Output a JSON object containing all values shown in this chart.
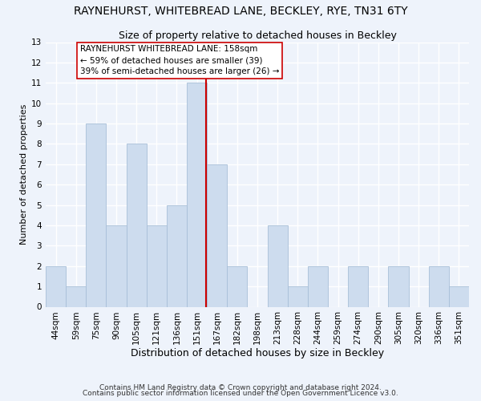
{
  "title": "RAYNEHURST, WHITEBREAD LANE, BECKLEY, RYE, TN31 6TY",
  "subtitle": "Size of property relative to detached houses in Beckley",
  "xlabel": "Distribution of detached houses by size in Beckley",
  "ylabel": "Number of detached properties",
  "bin_labels": [
    "44sqm",
    "59sqm",
    "75sqm",
    "90sqm",
    "105sqm",
    "121sqm",
    "136sqm",
    "151sqm",
    "167sqm",
    "182sqm",
    "198sqm",
    "213sqm",
    "228sqm",
    "244sqm",
    "259sqm",
    "274sqm",
    "290sqm",
    "305sqm",
    "320sqm",
    "336sqm",
    "351sqm"
  ],
  "bar_heights": [
    2,
    1,
    9,
    4,
    8,
    4,
    5,
    11,
    7,
    2,
    0,
    4,
    1,
    2,
    0,
    2,
    0,
    2,
    0,
    2,
    1
  ],
  "bar_color": "#cddcee",
  "bar_edge_color": "#a8bfd8",
  "vline_color": "#cc0000",
  "annotation_text": "RAYNEHURST WHITEBREAD LANE: 158sqm\n← 59% of detached houses are smaller (39)\n39% of semi-detached houses are larger (26) →",
  "annotation_box_color": "#ffffff",
  "annotation_box_edge": "#cc0000",
  "ylim": [
    0,
    13
  ],
  "yticks": [
    0,
    1,
    2,
    3,
    4,
    5,
    6,
    7,
    8,
    9,
    10,
    11,
    12,
    13
  ],
  "footer1": "Contains HM Land Registry data © Crown copyright and database right 2024.",
  "footer2": "Contains public sector information licensed under the Open Government Licence v3.0.",
  "bg_color": "#eef3fb",
  "grid_color": "#ffffff",
  "title_fontsize": 10,
  "subtitle_fontsize": 9,
  "xlabel_fontsize": 9,
  "ylabel_fontsize": 8,
  "tick_fontsize": 7.5,
  "annotation_fontsize": 7.5,
  "footer_fontsize": 6.5
}
